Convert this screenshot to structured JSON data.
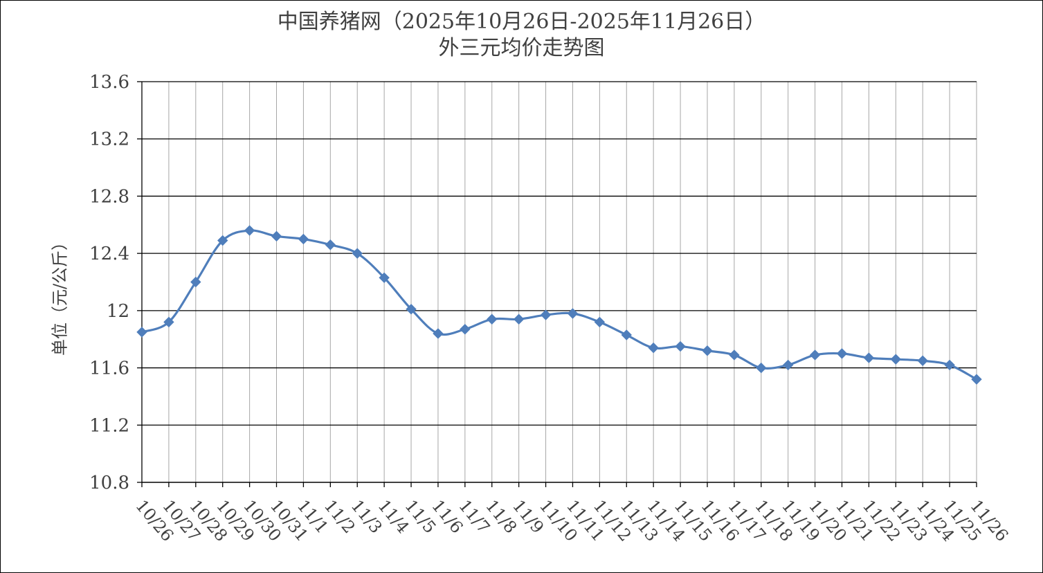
{
  "chart_data": {
    "type": "line",
    "title": [
      "中国养猪网（2025年10月26日-2025年11月26日）",
      "外三元均价走势图"
    ],
    "xlabel": "",
    "ylabel": "单位（元/公斤）",
    "ylim": [
      10.8,
      13.6
    ],
    "yticks": [
      "10.8",
      "11.2",
      "11.6",
      "12",
      "12.4",
      "12.8",
      "13.2",
      "13.6"
    ],
    "categories": [
      "10/26",
      "10/27",
      "10/28",
      "10/29",
      "10/30",
      "10/31",
      "11/1",
      "11/2",
      "11/3",
      "11/4",
      "11/5",
      "11/6",
      "11/7",
      "11/8",
      "11/9",
      "11/10",
      "11/11",
      "11/12",
      "11/13",
      "11/14",
      "11/15",
      "11/16",
      "11/17",
      "11/18",
      "11/19",
      "11/20",
      "11/21",
      "11/22",
      "11/23",
      "11/24",
      "11/25",
      "11/26"
    ],
    "series": [
      {
        "values": [
          11.85,
          11.92,
          12.2,
          12.49,
          12.56,
          12.52,
          12.5,
          12.46,
          12.4,
          12.23,
          12.01,
          11.84,
          11.87,
          11.94,
          11.94,
          11.97,
          11.98,
          11.92,
          11.83,
          11.74,
          11.75,
          11.72,
          11.69,
          11.6,
          11.62,
          11.69,
          11.7,
          11.67,
          11.66,
          11.65,
          11.62,
          11.52
        ],
        "color": "#4F7EBB",
        "marker": "diamond",
        "smooth": true
      }
    ],
    "grid": {
      "horizontal": true,
      "vertical": true,
      "horizontal_color": "#000000",
      "vertical_color": "#A6A6A6"
    },
    "legend": "none"
  }
}
